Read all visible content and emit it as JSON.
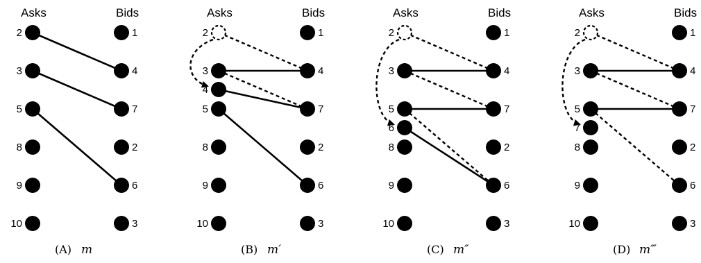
{
  "headers": {
    "asks": "Asks",
    "bids": "Bids"
  },
  "panels": [
    {
      "caption": "(A)",
      "caption_math": "m",
      "asks": [
        {
          "label": "2"
        },
        {
          "label": "3"
        },
        {
          "label": "5"
        },
        {
          "label": "8"
        },
        {
          "label": "9"
        },
        {
          "label": "10"
        }
      ],
      "bids": [
        {
          "label": "1"
        },
        {
          "label": "4"
        },
        {
          "label": "7"
        },
        {
          "label": "2"
        },
        {
          "label": "6"
        },
        {
          "label": "3"
        }
      ],
      "solid_edges": [
        [
          "a2",
          "b4"
        ],
        [
          "a3",
          "b7"
        ],
        [
          "a5",
          "b6"
        ]
      ],
      "dashed_edges": []
    },
    {
      "caption": "(B)",
      "caption_math": "m′",
      "asks": [
        {
          "label": "2",
          "style": "dashed"
        },
        {
          "label": "3"
        },
        {
          "label": "4"
        },
        {
          "label": "5"
        },
        {
          "label": "8"
        },
        {
          "label": "9"
        },
        {
          "label": "10"
        }
      ],
      "bids": [
        {
          "label": "1"
        },
        {
          "label": "4"
        },
        {
          "label": "7"
        },
        {
          "label": "2"
        },
        {
          "label": "6"
        },
        {
          "label": "3"
        }
      ],
      "solid_edges": [
        [
          "a3",
          "b4"
        ],
        [
          "a4",
          "b7"
        ],
        [
          "a5",
          "b6"
        ]
      ],
      "dashed_edges": [
        [
          "a2",
          "b4"
        ],
        [
          "a3",
          "b7"
        ]
      ],
      "move_arrow": [
        "2",
        "4"
      ]
    },
    {
      "caption": "(C)",
      "caption_math": "m″",
      "asks": [
        {
          "label": "2",
          "style": "dashed"
        },
        {
          "label": "3"
        },
        {
          "label": "5"
        },
        {
          "label": "6"
        },
        {
          "label": "8"
        },
        {
          "label": "9"
        },
        {
          "label": "10"
        }
      ],
      "bids": [
        {
          "label": "1"
        },
        {
          "label": "4"
        },
        {
          "label": "7"
        },
        {
          "label": "2"
        },
        {
          "label": "6"
        },
        {
          "label": "3"
        }
      ],
      "solid_edges": [
        [
          "a3",
          "b4"
        ],
        [
          "a5",
          "b7"
        ],
        [
          "a6",
          "b6"
        ]
      ],
      "dashed_edges": [
        [
          "a2",
          "b4"
        ],
        [
          "a3",
          "b7"
        ],
        [
          "a5",
          "b6"
        ]
      ],
      "move_arrow": [
        "2",
        "6"
      ]
    },
    {
      "caption": "(D)",
      "caption_math": "m‴",
      "asks": [
        {
          "label": "2",
          "style": "dashed"
        },
        {
          "label": "3"
        },
        {
          "label": "5"
        },
        {
          "label": "7"
        },
        {
          "label": "8"
        },
        {
          "label": "9"
        },
        {
          "label": "10"
        }
      ],
      "bids": [
        {
          "label": "1"
        },
        {
          "label": "4"
        },
        {
          "label": "7"
        },
        {
          "label": "2"
        },
        {
          "label": "6"
        },
        {
          "label": "3"
        }
      ],
      "solid_edges": [
        [
          "a3",
          "b4"
        ],
        [
          "a5",
          "b7"
        ]
      ],
      "dashed_edges": [
        [
          "a2",
          "b4"
        ],
        [
          "a3",
          "b7"
        ],
        [
          "a5",
          "b6"
        ]
      ],
      "move_arrow": [
        "2",
        "7"
      ]
    }
  ]
}
